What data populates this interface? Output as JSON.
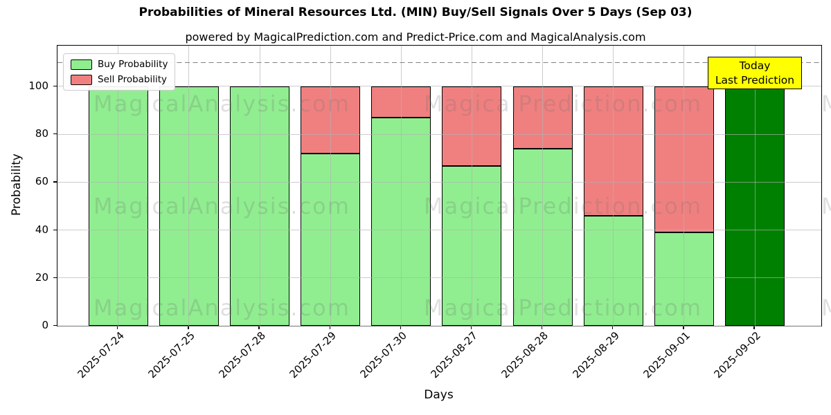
{
  "chart_data": {
    "type": "bar",
    "stacked": true,
    "title": "Probabilities of Mineral Resources Ltd. (MIN) Buy/Sell Signals Over 5 Days (Sep 03)",
    "subtitle": "powered by MagicalPrediction.com and Predict-Price.com and MagicalAnalysis.com",
    "xlabel": "Days",
    "ylabel": "Probability",
    "categories": [
      "2025-07-24",
      "2025-07-25",
      "2025-07-28",
      "2025-07-29",
      "2025-07-30",
      "2025-08-27",
      "2025-08-28",
      "2025-08-29",
      "2025-09-01",
      "2025-09-02"
    ],
    "series": [
      {
        "name": "Buy Probability",
        "color": "#90ee90",
        "values": [
          100,
          100,
          100,
          72,
          87,
          66.7,
          74,
          46,
          39,
          100
        ]
      },
      {
        "name": "Sell Probability",
        "color": "#f08080",
        "values": [
          0,
          0,
          0,
          28,
          13,
          33.3,
          26,
          54,
          61,
          0
        ]
      }
    ],
    "today_index": 9,
    "today_bar_color": "#008000",
    "ylim": [
      0,
      117
    ],
    "yticks": [
      0,
      20,
      40,
      60,
      80,
      100
    ],
    "grid": true,
    "legend_position": "upper left",
    "dashed_guide_line_y": 110,
    "annotation": {
      "line1": "Today",
      "line2": "Last Prediction",
      "bg_color": "#ffff00"
    },
    "watermarks": {
      "left_text": "MagicalAnalysis.com",
      "right_text": "MagicalPrediction.com"
    }
  },
  "legend": {
    "buy_label": "Buy Probability",
    "sell_label": "Sell Probability"
  },
  "colors": {
    "buy": "#90ee90",
    "sell": "#f08080",
    "today_bar": "#008000",
    "annotation_bg": "#ffff00",
    "grid": "#b0b0b0",
    "dashed_line": "#7f7f7f"
  }
}
